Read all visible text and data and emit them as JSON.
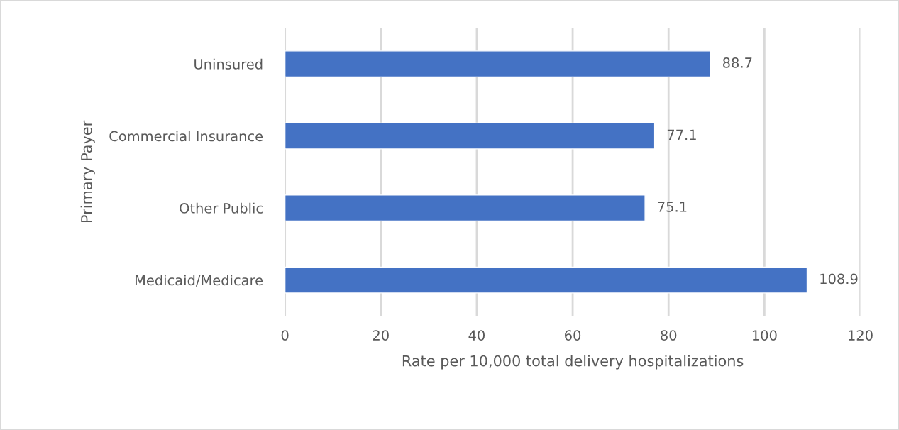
{
  "chart_data": {
    "type": "bar",
    "orientation": "horizontal",
    "categories": [
      "Uninsured",
      "Commercial Insurance",
      "Other Public",
      "Medicaid/Medicare"
    ],
    "values": [
      88.7,
      77.1,
      75.1,
      108.9
    ],
    "color": "#4472c4",
    "xlabel": "Rate per 10,000 total delivery hospitalizations",
    "ylabel": "Primary Payer",
    "xlim": [
      0,
      120
    ],
    "xticks": [
      0,
      20,
      40,
      60,
      80,
      100,
      120
    ],
    "grid": "x",
    "data_labels": true
  }
}
